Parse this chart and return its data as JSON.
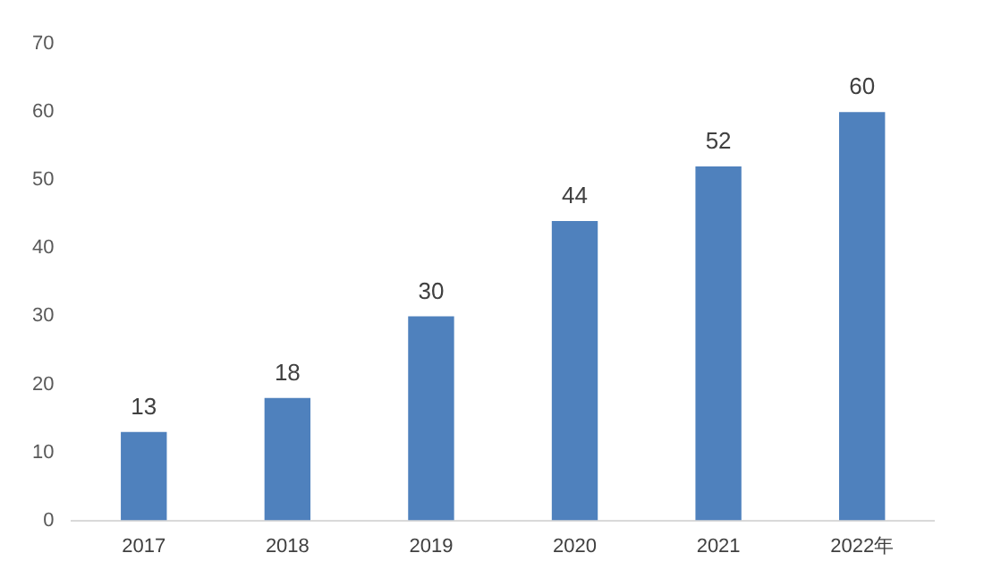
{
  "chart_data": {
    "type": "bar",
    "categories": [
      "2017",
      "2018",
      "2019",
      "2020",
      "2021",
      "2022年"
    ],
    "values": [
      13,
      18,
      30,
      44,
      52,
      60
    ],
    "color": "#4f81bd",
    "ylim": [
      0,
      70
    ],
    "yticks": [
      0,
      10,
      20,
      30,
      40,
      50,
      60,
      70
    ],
    "grid": false,
    "data_labels": true,
    "legend": false
  }
}
